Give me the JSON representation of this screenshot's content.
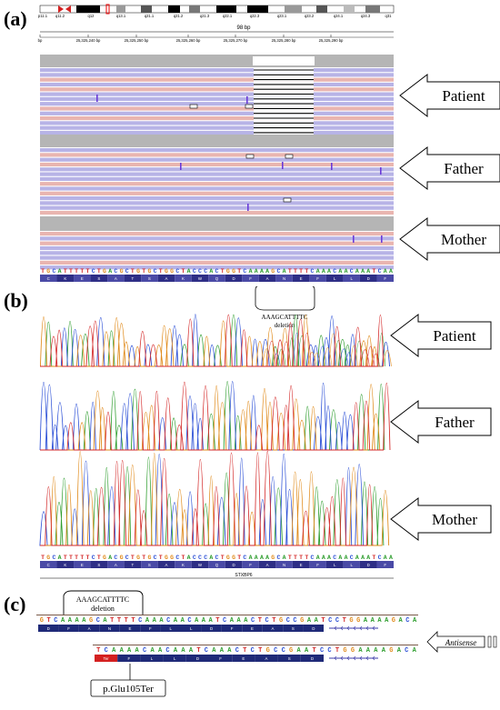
{
  "panels": {
    "a": {
      "letter": "(a)",
      "ideogram_bands": [
        "p11.1",
        "q11.2",
        "q12",
        "q13.1",
        "q21.1",
        "q21.2",
        "q21.3",
        "q22.1",
        "q22.3",
        "q23.1",
        "q23.2",
        "q24.1",
        "q24.3",
        "q31"
      ],
      "scale_label": "98 bp",
      "ruler_ticks": [
        "bp",
        "25,325,240 bp",
        "25,325,250 bp",
        "25,325,260 bp",
        "25,325,270 bp",
        "25,325,280 bp",
        "25,325,290 bp"
      ],
      "tracks": [
        "Patient",
        "Father",
        "Mother"
      ],
      "reference_sequence": "TGCATTTTTCTGACGCTGTGCTGGCTACCCACTGGTCAAAAGCATTTTCAAACAACAAATCAA",
      "amino_acids": [
        "C",
        "K",
        "E",
        "S",
        "A",
        "T",
        "S",
        "A",
        "K",
        "W",
        "Q",
        "D",
        "F",
        "A",
        "N",
        "E",
        "F",
        "L",
        "L",
        "D",
        "F"
      ]
    },
    "b": {
      "letter": "(b)",
      "deletion_label_1": "AAAGCATTTTC",
      "deletion_label_2": "deletion",
      "tracks": [
        "Patient",
        "Father",
        "Mother"
      ],
      "reference_sequence": "TGCATTTTTCTGACGCTGTGCTGGCTACCCACTGGTCAAAAGCATTTTCAAACAACAAATCAA",
      "amino_acids": [
        "C",
        "K",
        "E",
        "S",
        "A",
        "T",
        "S",
        "A",
        "K",
        "W",
        "Q",
        "D",
        "F",
        "A",
        "N",
        "E",
        "F",
        "L",
        "L",
        "D",
        "F"
      ],
      "gene": "STXBP6"
    },
    "c": {
      "letter": "(c)",
      "deletion_label_1": "AAAGCATTTTC",
      "deletion_label_2": "deletion",
      "seq_top": "GTCAAAAGCATTTTCAAACAACAAATCAAACTCTGCCGAATCCTGGAAAAGACA",
      "aa_top": [
        "D",
        "F",
        "A",
        "N",
        "E",
        "F",
        "L",
        "L",
        "D",
        "F",
        "E",
        "A",
        "S",
        "D"
      ],
      "seq_bottom": "TCAAAACAACAAATCAAACTCTGCCGAATCCTGGAAAAGACA",
      "aa_bottom": [
        "Ter",
        "F",
        "L",
        "L",
        "D",
        "F",
        "E",
        "A",
        "S",
        "D"
      ],
      "antisense_label": "Antisense",
      "variant_label": "p.Glu105Ter"
    }
  },
  "colors": {
    "read_purple": "#b7b3e6",
    "read_pink": "#e9b5b0",
    "read_gray": "#b5b5b5",
    "nuc_A": "#2f9e2f",
    "nuc_C": "#2b4fd6",
    "nuc_G": "#e08a1a",
    "nuc_T": "#d42a2a",
    "aa_dark": "#2a2a7a",
    "stop_red": "#d42020"
  }
}
